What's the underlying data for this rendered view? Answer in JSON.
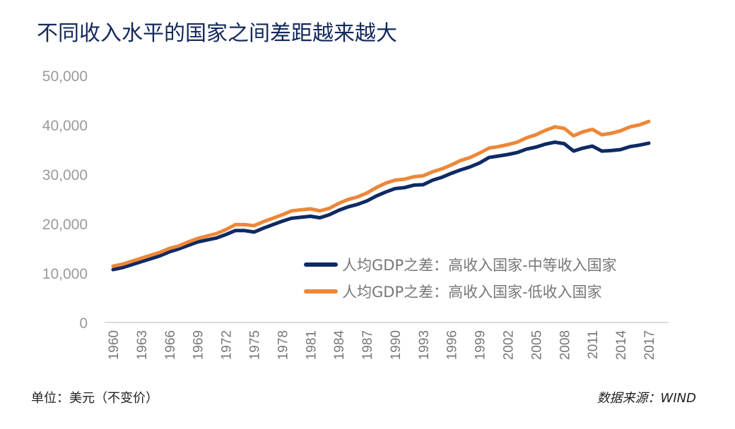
{
  "chart_data": {
    "type": "line",
    "title": "不同收入水平的国家之间差距越来越大",
    "xlabel": "",
    "ylabel": "",
    "x": [
      1960,
      1961,
      1962,
      1963,
      1964,
      1965,
      1966,
      1967,
      1968,
      1969,
      1970,
      1971,
      1972,
      1973,
      1974,
      1975,
      1976,
      1977,
      1978,
      1979,
      1980,
      1981,
      1982,
      1983,
      1984,
      1985,
      1986,
      1987,
      1988,
      1989,
      1990,
      1991,
      1992,
      1993,
      1994,
      1995,
      1996,
      1997,
      1998,
      1999,
      2000,
      2001,
      2002,
      2003,
      2004,
      2005,
      2006,
      2007,
      2008,
      2009,
      2010,
      2011,
      2012,
      2013,
      2014,
      2015,
      2016,
      2017
    ],
    "xticks": [
      "1960",
      "1963",
      "1966",
      "1969",
      "1972",
      "1975",
      "1978",
      "1981",
      "1984",
      "1987",
      "1990",
      "1993",
      "1996",
      "1999",
      "2002",
      "2005",
      "2008",
      "2011",
      "2014",
      "2017"
    ],
    "yticks": [
      "0",
      "10,000",
      "20,000",
      "30,000",
      "40,000",
      "50,000"
    ],
    "ylim": [
      0,
      50000
    ],
    "grid": false,
    "legend_position": "center-right",
    "series": [
      {
        "name": "人均GDP之差：高收入国家-中等收入国家",
        "color": "#0e2a63",
        "values": [
          10700,
          11100,
          11700,
          12300,
          12900,
          13500,
          14300,
          14900,
          15600,
          16300,
          16700,
          17100,
          17800,
          18600,
          18600,
          18300,
          19100,
          19800,
          20500,
          21100,
          21300,
          21500,
          21200,
          21800,
          22700,
          23400,
          23900,
          24600,
          25600,
          26400,
          27100,
          27300,
          27800,
          27900,
          28800,
          29400,
          30200,
          30900,
          31500,
          32300,
          33400,
          33700,
          34000,
          34400,
          35100,
          35500,
          36100,
          36500,
          36200,
          34700,
          35300,
          35700,
          34700,
          34800,
          35000,
          35600,
          35900,
          36300
        ]
      },
      {
        "name": "人均GDP之差：高收入国家-低收入国家",
        "color": "#ed8739",
        "values": [
          11400,
          11800,
          12400,
          13000,
          13600,
          14200,
          15000,
          15500,
          16300,
          17000,
          17500,
          18000,
          18800,
          19800,
          19800,
          19600,
          20400,
          21100,
          21800,
          22600,
          22800,
          23000,
          22600,
          23100,
          24100,
          24900,
          25400,
          26200,
          27300,
          28200,
          28800,
          29000,
          29500,
          29700,
          30500,
          31100,
          31900,
          32800,
          33400,
          34300,
          35300,
          35600,
          36000,
          36500,
          37400,
          38000,
          38900,
          39600,
          39300,
          37800,
          38600,
          39100,
          38000,
          38300,
          38800,
          39600,
          40000,
          40700
        ]
      }
    ]
  },
  "footer": {
    "unit": "单位：美元（不变价）",
    "source": "数据来源：WIND"
  }
}
